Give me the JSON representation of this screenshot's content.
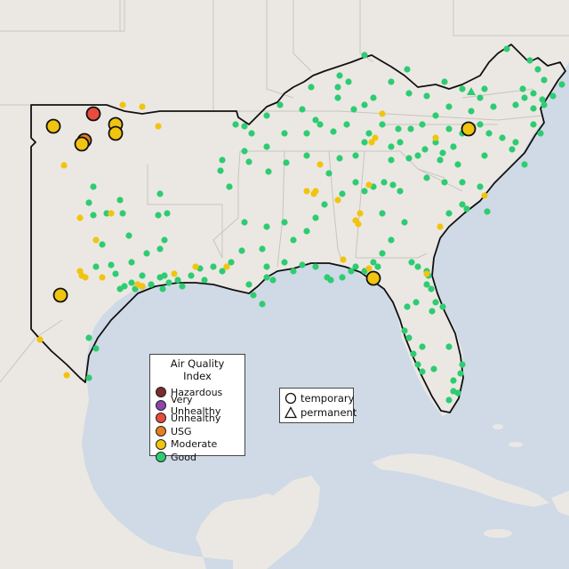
{
  "map": {
    "legend": {
      "title": "Air Quality Index",
      "items": [
        {
          "label": "Hazardous",
          "color": "#7b2c2c"
        },
        {
          "label": "Very Unhealthy",
          "color": "#8e44ad"
        },
        {
          "label": "Unhealthy",
          "color": "#e74c3c"
        },
        {
          "label": "USG",
          "color": "#e67e22"
        },
        {
          "label": "Moderate",
          "color": "#f1c40f"
        },
        {
          "label": "Good",
          "color": "#2ecc71"
        }
      ]
    },
    "shape_legend": {
      "items": [
        {
          "label": "temporary",
          "shape": "circle"
        },
        {
          "label": "permanent",
          "shape": "triangle"
        }
      ]
    },
    "colors": {
      "land": "#ebe8e4",
      "water": "#cfdae6",
      "region_outline": "#111111",
      "state_border": "#c8c4bf"
    }
  }
}
